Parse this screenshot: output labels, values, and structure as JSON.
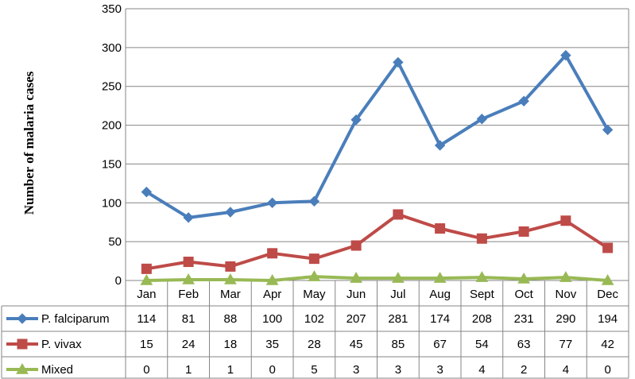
{
  "chart_data": {
    "type": "line",
    "categories": [
      "Jan",
      "Feb",
      "Mar",
      "Apr",
      "May",
      "Jun",
      "Jul",
      "Aug",
      "Sept",
      "Oct",
      "Nov",
      "Dec"
    ],
    "series": [
      {
        "name": "P. falciparum",
        "color": "#4a7ebb",
        "marker": "diamond",
        "values": [
          114,
          81,
          88,
          100,
          102,
          207,
          281,
          174,
          208,
          231,
          290,
          194
        ]
      },
      {
        "name": "P. vivax",
        "color": "#be4b48",
        "marker": "square",
        "values": [
          15,
          24,
          18,
          35,
          28,
          45,
          85,
          67,
          54,
          63,
          77,
          42
        ]
      },
      {
        "name": "Mixed",
        "color": "#98b954",
        "marker": "triangle",
        "values": [
          0,
          1,
          1,
          0,
          5,
          3,
          3,
          3,
          4,
          2,
          4,
          0
        ]
      }
    ],
    "ylabel": "Number  of malaria cases",
    "xlabel": "",
    "ylim": [
      0,
      350
    ],
    "yticks": [
      0,
      50,
      100,
      150,
      200,
      250,
      300,
      350
    ],
    "grid": "horizontal",
    "legend": "data-table"
  }
}
